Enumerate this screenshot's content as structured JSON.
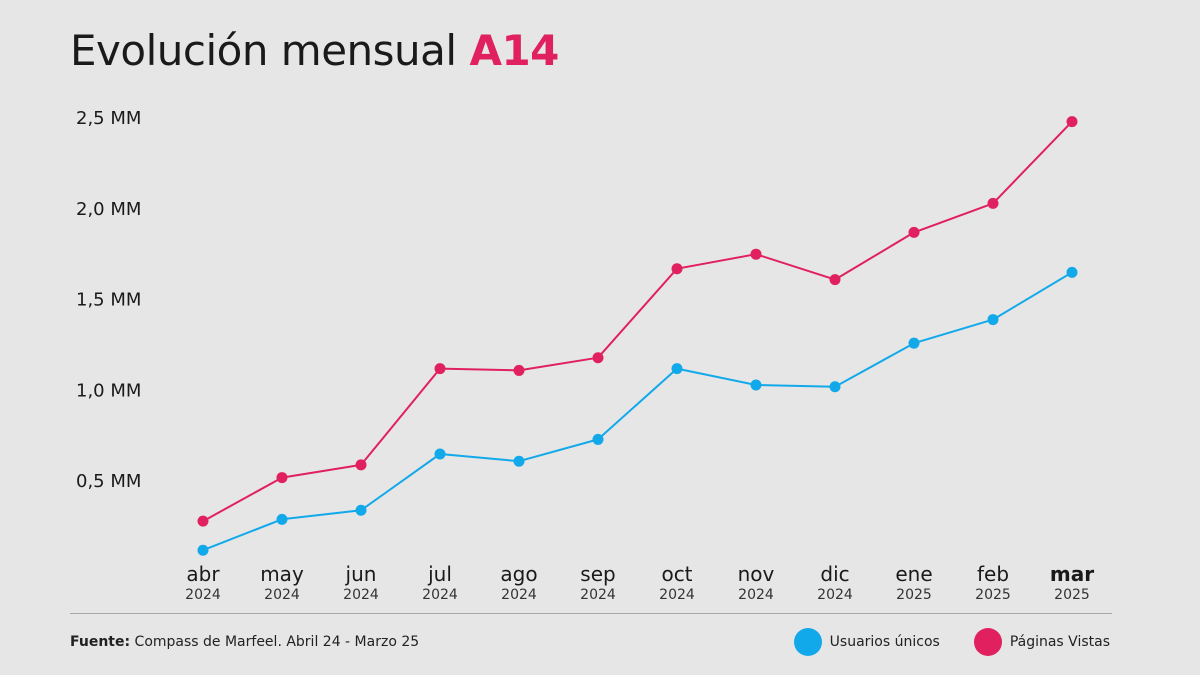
{
  "header": {
    "title_main": "Evolución mensual",
    "title_accent": "A14"
  },
  "footer": {
    "source_label": "Fuente:",
    "source_text": "Compass de Marfeel. Abril 24 - Marzo 25"
  },
  "chart_data": {
    "type": "line",
    "title": "Evolución mensual A14",
    "categories": [
      "abr",
      "may",
      "jun",
      "jul",
      "ago",
      "sep",
      "oct",
      "nov",
      "dic",
      "ene",
      "feb",
      "mar"
    ],
    "category_years": [
      "2024",
      "2024",
      "2024",
      "2024",
      "2024",
      "2024",
      "2024",
      "2024",
      "2024",
      "2025",
      "2025",
      "2025"
    ],
    "highlighted_category": "mar",
    "y_ticks": [
      0.5,
      1.0,
      1.5,
      2.0,
      2.5
    ],
    "y_tick_labels": [
      "0,5 MM",
      "1,0 MM",
      "1,5 MM",
      "2,0 MM",
      "2,5 MM"
    ],
    "ylim": [
      0,
      2.5
    ],
    "grid": false,
    "legend_position": "bottom-right",
    "series": [
      {
        "name": "Usuarios únicos",
        "color": "#12a9ea",
        "values": [
          0.12,
          0.29,
          0.34,
          0.65,
          0.61,
          0.73,
          1.12,
          1.03,
          1.02,
          1.26,
          1.39,
          1.65
        ]
      },
      {
        "name": "Páginas Vistas",
        "color": "#e0205f",
        "values": [
          0.28,
          0.52,
          0.59,
          1.12,
          1.11,
          1.18,
          1.67,
          1.75,
          1.61,
          1.87,
          2.03,
          2.48
        ]
      }
    ]
  }
}
